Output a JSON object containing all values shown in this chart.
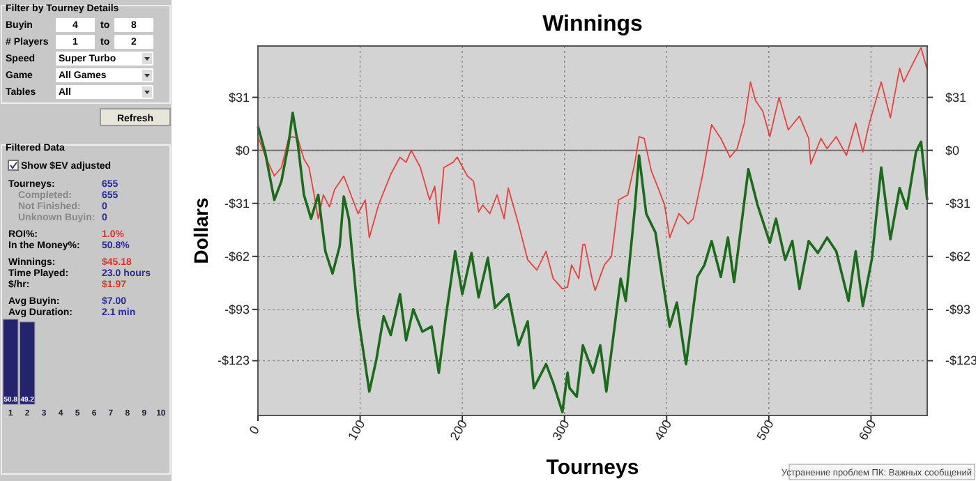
{
  "chart_data": [
    {
      "type": "other",
      "annotations": [
        "Filter by Tourney Details",
        "Buyin",
        "4",
        "to",
        "8",
        "# Players",
        "1",
        "to",
        "2",
        "Speed",
        "Super Turbo",
        "Game",
        "All Games",
        "Tables",
        "All",
        "Refresh",
        "Filtered Data",
        "Show $EV adjusted",
        "Tourneys:",
        "655",
        "Completed:",
        "655",
        "Not Finished:",
        "0",
        "Unknown Buyin:",
        "0",
        "ROI%:",
        "1.0%",
        "In the Money%:",
        "50.8%",
        "Winnings:",
        "$45.18",
        "Time Played:",
        "23.0 hours",
        "$/hr:",
        "$1.97",
        "Avg Buyin:",
        "$7.00",
        "Avg Duration:",
        "2.1 min"
      ]
    },
    {
      "type": "bar",
      "categories": [
        "1",
        "2",
        "3",
        "4",
        "5",
        "6",
        "7",
        "8",
        "9",
        "10"
      ],
      "values": [
        50.8,
        49.2,
        null,
        null,
        null,
        null,
        null,
        null,
        null,
        null
      ],
      "color": "#24246e",
      "data_labels": true
    },
    {
      "type": "line",
      "title": "Winnings",
      "xlabel": "Tourneys",
      "ylabel": "Dollars",
      "xlim": [
        0,
        655
      ],
      "xticks": [
        0,
        100,
        200,
        300,
        400,
        500,
        600
      ],
      "ylim": [
        -155,
        61
      ],
      "yticks": [
        {
          "value": -123,
          "label": "-$123"
        },
        {
          "value": -93,
          "label": "-$93"
        },
        {
          "value": -62,
          "label": "-$62"
        },
        {
          "value": -31,
          "label": "-$31"
        },
        {
          "value": 0,
          "label": "$0"
        },
        {
          "value": 31,
          "label": "$31"
        }
      ],
      "y2lim": [
        -155,
        61
      ],
      "y2ticks": [
        {
          "value": -123,
          "label": "-$123"
        },
        {
          "value": -93,
          "label": "-$93"
        },
        {
          "value": -62,
          "label": "-$62"
        },
        {
          "value": -31,
          "label": "-$31"
        },
        {
          "value": 0,
          "label": "$0"
        },
        {
          "value": 31,
          "label": "$31"
        }
      ],
      "grid": true,
      "ref_lines": [
        {
          "axis": "y",
          "value": 0,
          "color": "#707070",
          "line_style": "solid"
        }
      ],
      "annotations": [
        "Устранение проблем ПК: Важных сообщений"
      ],
      "series": [
        {
          "color": "#e8403a",
          "x": [
            0,
            7,
            16,
            23,
            30,
            34,
            39,
            45,
            50,
            55,
            59,
            64,
            70,
            75,
            84,
            91,
            98,
            105,
            109,
            118,
            130,
            139,
            145,
            150,
            159,
            168,
            173,
            177,
            182,
            191,
            195,
            205,
            211,
            216,
            220,
            227,
            234,
            241,
            245,
            255,
            264,
            273,
            282,
            289,
            298,
            303,
            307,
            314,
            318,
            320,
            327,
            330,
            339,
            346,
            353,
            362,
            369,
            373,
            378,
            385,
            391,
            398,
            403,
            412,
            421,
            426,
            435,
            444,
            453,
            462,
            469,
            476,
            482,
            487,
            494,
            501,
            510,
            519,
            530,
            539,
            541,
            551,
            557,
            566,
            576,
            585,
            592,
            598,
            610,
            619,
            628,
            632,
            642,
            649,
            655
          ],
          "values": [
            8,
            -3,
            -15,
            -10,
            7,
            8,
            7,
            -5,
            -10,
            -26,
            -40,
            -26,
            -33,
            -23,
            -15,
            -26,
            -37,
            -29,
            -51,
            -32,
            -14,
            -4,
            -7,
            0,
            -10,
            -29,
            -21,
            -43,
            -10,
            -7,
            -4,
            -15,
            -18,
            -36,
            -32,
            -37,
            -26,
            -40,
            -22,
            -43,
            -64,
            -70,
            -59,
            -75,
            -81,
            -80,
            -67,
            -75,
            -55,
            -55,
            -75,
            -82,
            -67,
            -62,
            -29,
            -26,
            -7,
            8,
            7,
            -12,
            -21,
            -32,
            -51,
            -37,
            -43,
            -40,
            -15,
            15,
            7,
            -4,
            1,
            16,
            40,
            29,
            23,
            8,
            31,
            12,
            20,
            7,
            -8,
            7,
            1,
            8,
            -3,
            16,
            -1,
            15,
            40,
            19,
            48,
            40,
            52,
            60,
            47
          ]
        },
        {
          "color": "#1a6b1a",
          "x": [
            0,
            7,
            16,
            23,
            30,
            34,
            39,
            45,
            52,
            59,
            66,
            73,
            80,
            84,
            89,
            98,
            109,
            116,
            123,
            130,
            139,
            145,
            152,
            161,
            170,
            177,
            184,
            193,
            200,
            209,
            216,
            225,
            232,
            245,
            255,
            264,
            270,
            282,
            289,
            298,
            303,
            305,
            312,
            318,
            328,
            335,
            341,
            355,
            360,
            369,
            373,
            380,
            389,
            403,
            410,
            419,
            430,
            437,
            444,
            453,
            460,
            466,
            480,
            489,
            501,
            507,
            516,
            523,
            530,
            539,
            548,
            557,
            566,
            578,
            585,
            592,
            601,
            610,
            619,
            628,
            635,
            644,
            649,
            655
          ],
          "values": [
            14,
            -1,
            -29,
            -18,
            4,
            22,
            4,
            -26,
            -40,
            -26,
            -59,
            -72,
            -56,
            -27,
            -40,
            -97,
            -141,
            -122,
            -97,
            -108,
            -84,
            -111,
            -93,
            -106,
            -103,
            -130,
            -97,
            -59,
            -84,
            -60,
            -86,
            -63,
            -92,
            -84,
            -114,
            -100,
            -139,
            -125,
            -136,
            -153,
            -130,
            -139,
            -144,
            -114,
            -130,
            -114,
            -141,
            -75,
            -88,
            -33,
            -3,
            -37,
            -48,
            -103,
            -89,
            -125,
            -74,
            -67,
            -53,
            -74,
            -51,
            -77,
            -11,
            -32,
            -54,
            -40,
            -64,
            -53,
            -81,
            -53,
            -60,
            -51,
            -59,
            -88,
            -59,
            -91,
            -63,
            -10,
            -52,
            -22,
            -34,
            -1,
            5,
            -29
          ]
        }
      ]
    }
  ]
}
